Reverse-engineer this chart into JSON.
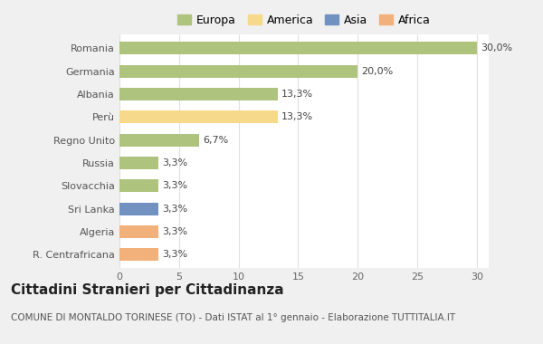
{
  "categories": [
    "Romania",
    "Germania",
    "Albania",
    "Perù",
    "Regno Unito",
    "Russia",
    "Slovacchia",
    "Sri Lanka",
    "Algeria",
    "R. Centrafricana"
  ],
  "values": [
    30.0,
    20.0,
    13.3,
    13.3,
    6.7,
    3.3,
    3.3,
    3.3,
    3.3,
    3.3
  ],
  "labels": [
    "30,0%",
    "20,0%",
    "13,3%",
    "13,3%",
    "6,7%",
    "3,3%",
    "3,3%",
    "3,3%",
    "3,3%",
    "3,3%"
  ],
  "continents": [
    "Europa",
    "Europa",
    "Europa",
    "America",
    "Europa",
    "Europa",
    "Europa",
    "Asia",
    "Africa",
    "Africa"
  ],
  "colors": {
    "Europa": "#aec47e",
    "America": "#f7d98b",
    "Asia": "#7191c0",
    "Africa": "#f2b07a"
  },
  "legend_order": [
    "Europa",
    "America",
    "Asia",
    "Africa"
  ],
  "title": "Cittadini Stranieri per Cittadinanza",
  "subtitle": "COMUNE DI MONTALDO TORINESE (TO) - Dati ISTAT al 1° gennaio - Elaborazione TUTTITALIA.IT",
  "xlim": [
    0,
    31
  ],
  "xticks": [
    0,
    5,
    10,
    15,
    20,
    25,
    30
  ],
  "outer_bg": "#f0f0f0",
  "plot_bg": "#ffffff",
  "bar_height": 0.55,
  "title_fontsize": 11,
  "subtitle_fontsize": 7.5,
  "label_fontsize": 8,
  "tick_fontsize": 8,
  "legend_fontsize": 9
}
